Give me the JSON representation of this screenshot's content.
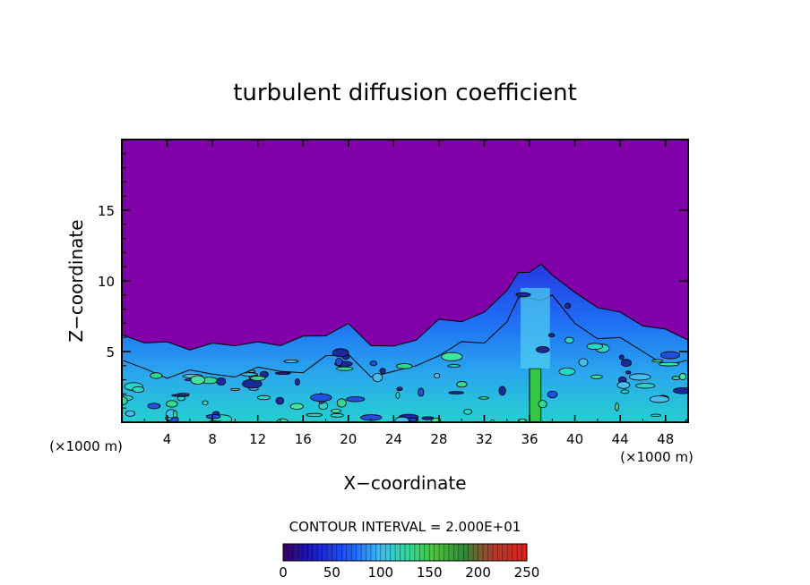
{
  "chart_data": {
    "type": "heatmap",
    "title": "turbulent diffusion coefficient",
    "xlabel": "X−coordinate",
    "ylabel": "Z−coordinate",
    "x_unit_left": "(×1000 m)",
    "x_unit_right": "(×1000 m)",
    "xlim": [
      0,
      50
    ],
    "ylim": [
      0,
      20
    ],
    "x_ticks": [
      4,
      8,
      12,
      16,
      20,
      24,
      28,
      32,
      36,
      40,
      44,
      48
    ],
    "y_ticks": [
      5,
      10,
      15
    ],
    "contour_note": "CONTOUR INTERVAL = 2.000E+01",
    "contour_interval": 20,
    "colorbar": {
      "min": 0,
      "max": 250,
      "ticks": [
        0,
        50,
        100,
        150,
        200,
        250
      ]
    },
    "background_color": "#8200a8",
    "turbulent_top_profile": {
      "x": [
        0,
        2,
        4,
        6,
        8,
        10,
        12,
        14,
        16,
        18,
        20,
        22,
        24,
        26,
        28,
        30,
        32,
        34,
        35,
        36,
        37,
        38,
        40,
        42,
        44,
        46,
        48,
        50
      ],
      "z": [
        6.0,
        5.8,
        5.5,
        5.3,
        5.4,
        5.6,
        5.5,
        5.6,
        5.9,
        6.3,
        6.8,
        5.6,
        5.2,
        6.0,
        7.1,
        7.3,
        7.6,
        9.5,
        10.4,
        10.8,
        11.0,
        10.6,
        9.0,
        8.3,
        7.6,
        7.0,
        6.4,
        6.0
      ]
    },
    "high_value_plume": {
      "x_center": 36.5,
      "z_top": 3.8,
      "value_approx": 140
    }
  }
}
